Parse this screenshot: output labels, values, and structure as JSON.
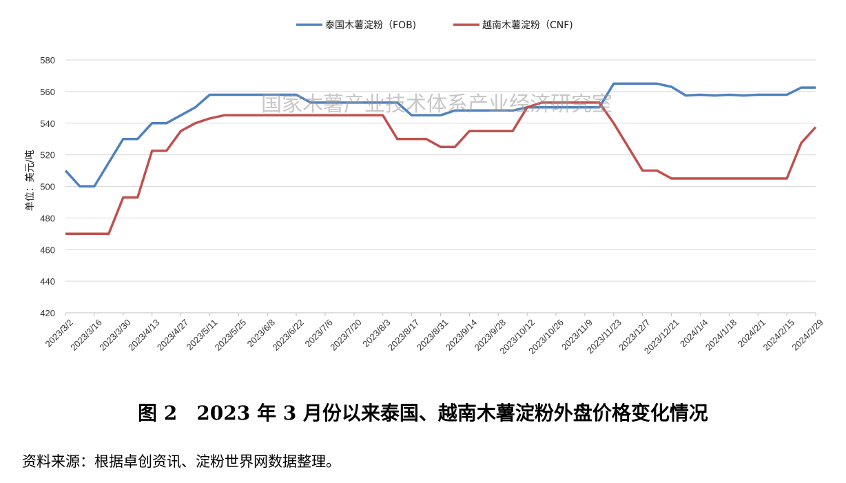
{
  "chart_data": {
    "type": "line",
    "title": "",
    "xlabel": "",
    "ylabel": "单位：美元/吨",
    "ylim": [
      420,
      580
    ],
    "yticks": [
      420,
      440,
      460,
      480,
      500,
      520,
      540,
      560,
      580
    ],
    "grid": true,
    "legend_position": "top-center",
    "x_tick_labels": [
      "2023/3/2",
      "2023/3/16",
      "2023/3/30",
      "2023/4/13",
      "2023/4/27",
      "2023/5/11",
      "2023/5/25",
      "2023/6/8",
      "2023/6/22",
      "2023/7/6",
      "2023/7/20",
      "2023/8/3",
      "2023/8/17",
      "2023/8/31",
      "2023/9/14",
      "2023/9/28",
      "2023/10/12",
      "2023/10/26",
      "2023/11/9",
      "2023/11/23",
      "2023/12/7",
      "2023/12/21",
      "2024/1/4",
      "2024/1/18",
      "2024/2/1",
      "2024/2/15",
      "2024/2/29"
    ],
    "x": [
      "2023/3/2",
      "2023/3/9",
      "2023/3/16",
      "2023/3/23",
      "2023/3/30",
      "2023/4/6",
      "2023/4/13",
      "2023/4/20",
      "2023/4/27",
      "2023/5/4",
      "2023/5/11",
      "2023/5/18",
      "2023/5/25",
      "2023/6/1",
      "2023/6/8",
      "2023/6/15",
      "2023/6/22",
      "2023/6/29",
      "2023/7/6",
      "2023/7/13",
      "2023/7/20",
      "2023/7/27",
      "2023/8/3",
      "2023/8/10",
      "2023/8/17",
      "2023/8/24",
      "2023/8/31",
      "2023/9/7",
      "2023/9/14",
      "2023/9/21",
      "2023/9/28",
      "2023/10/5",
      "2023/10/12",
      "2023/10/19",
      "2023/10/26",
      "2023/11/2",
      "2023/11/9",
      "2023/11/16",
      "2023/11/23",
      "2023/11/30",
      "2023/12/7",
      "2023/12/14",
      "2023/12/21",
      "2023/12/28",
      "2024/1/4",
      "2024/1/11",
      "2024/1/18",
      "2024/1/25",
      "2024/2/1",
      "2024/2/8",
      "2024/2/15",
      "2024/2/22",
      "2024/2/29"
    ],
    "series": [
      {
        "name": "泰国木薯淀粉（FOB)",
        "color": "#4f81bd",
        "values": [
          510,
          500,
          500,
          515,
          530,
          530,
          540,
          540,
          545,
          550,
          558,
          558,
          558,
          558,
          558,
          558,
          558,
          553,
          553,
          553,
          553,
          553,
          553,
          553,
          545,
          545,
          545,
          548,
          548,
          548,
          548,
          548,
          550,
          550,
          550,
          550,
          550,
          550,
          565,
          565,
          565,
          565,
          563,
          557.5,
          558,
          557.5,
          558,
          557.5,
          558,
          558,
          558,
          562.5,
          562.5
        ]
      },
      {
        "name": "越南木薯淀粉（CNF)",
        "color": "#c0504d",
        "values": [
          470,
          470,
          470,
          470,
          493,
          493,
          522.5,
          522.5,
          535,
          540,
          543,
          545,
          545,
          545,
          545,
          545,
          545,
          545,
          545,
          545,
          545,
          545,
          545,
          530,
          530,
          530,
          525,
          525,
          535,
          535,
          535,
          535,
          550,
          553,
          553,
          553,
          553,
          553,
          540,
          525,
          510,
          510,
          505,
          505,
          505,
          505,
          505,
          505,
          505,
          505,
          505,
          527.5,
          537.5
        ]
      }
    ]
  },
  "watermark": "国家木薯产业技术体系产业经济研究室",
  "caption": "图 2　2023 年 3 月份以来泰国、越南木薯淀粉外盘价格变化情况",
  "source": "资料来源：根据卓创资讯、淀粉世界网数据整理。"
}
